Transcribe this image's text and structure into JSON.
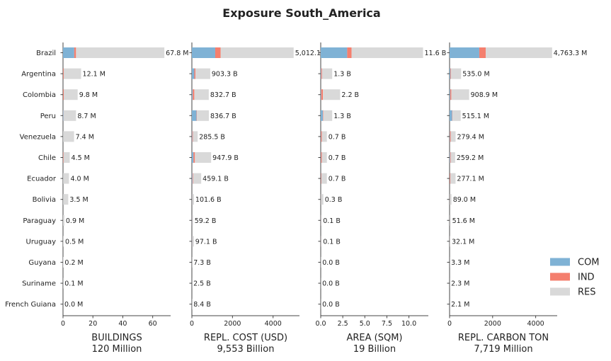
{
  "chart_data": {
    "type": "bar",
    "orientation": "horizontal",
    "stacked": true,
    "title": "Exposure South_America",
    "countries": [
      "Brazil",
      "Argentina",
      "Colombia",
      "Peru",
      "Venezuela",
      "Chile",
      "Ecuador",
      "Bolivia",
      "Paraguay",
      "Uruguay",
      "Guyana",
      "Suriname",
      "French Guiana"
    ],
    "legend": {
      "position": "right",
      "items": [
        {
          "name": "COM",
          "color": "#7fb2d5"
        },
        {
          "name": "IND",
          "color": "#f47f6e"
        },
        {
          "name": "RES",
          "color": "#d9d9d9"
        }
      ]
    },
    "panels": [
      {
        "xlabel": "BUILDINGS",
        "total_label": "120 Million",
        "xlim": [
          0,
          72
        ],
        "ticks": [
          0,
          20,
          40,
          60
        ],
        "com": [
          7.5,
          0.05,
          0.05,
          0.3,
          0.05,
          0.05,
          0.05,
          0.05,
          0.02,
          0.02,
          0.01,
          0.01,
          0.0
        ],
        "ind": [
          1.2,
          0.4,
          0.5,
          0.1,
          0.0,
          0.3,
          0.0,
          0.0,
          0.0,
          0.0,
          0.0,
          0.0,
          0.0
        ],
        "res": [
          59.1,
          11.65,
          9.25,
          8.3,
          7.35,
          4.15,
          3.95,
          3.45,
          0.88,
          0.48,
          0.19,
          0.09,
          0.0
        ],
        "labels": [
          "67.8 M",
          "12.1 M",
          "9.8 M",
          "8.7 M",
          "7.4 M",
          "4.5 M",
          "4.0 M",
          "3.5 M",
          "0.9 M",
          "0.5 M",
          "0.2 M",
          "0.1 M",
          "0.0 M"
        ]
      },
      {
        "xlabel": "REPL. COST (USD)",
        "total_label": "9,553 Billion",
        "xlim": [
          0,
          5300
        ],
        "ticks": [
          0,
          2000,
          4000
        ],
        "com": [
          1150,
          120,
          40,
          230,
          20,
          80,
          30,
          10,
          10,
          10,
          1,
          1,
          1
        ],
        "ind": [
          270,
          60,
          80,
          20,
          30,
          70,
          30,
          5,
          5,
          5,
          1,
          0.5,
          0.5
        ],
        "res": [
          3592.1,
          723.3,
          712.7,
          586.7,
          235.5,
          797.9,
          399.1,
          86.6,
          44.2,
          82.1,
          5.3,
          1,
          6.9
        ],
        "labels": [
          "5,012.1 B",
          "903.3 B",
          "832.7 B",
          "836.7 B",
          "285.5 B",
          "947.9 B",
          "459.1 B",
          "101.6 B",
          "59.2 B",
          "97.1 B",
          "7.3 B",
          "2.5 B",
          "8.4 B"
        ]
      },
      {
        "xlabel": "AREA (SQM)",
        "total_label": "19 Billion",
        "xlim": [
          0,
          12.2
        ],
        "ticks": [
          0,
          2.5,
          5.0,
          7.5,
          10.0
        ],
        "tick_labels": [
          "0.0",
          "2.5",
          "5.0",
          "7.5",
          "10.0"
        ],
        "com": [
          3.0,
          0.05,
          0.05,
          0.25,
          0.03,
          0.03,
          0.03,
          0.01,
          0.01,
          0.01,
          0,
          0,
          0
        ],
        "ind": [
          0.5,
          0.1,
          0.2,
          0.05,
          0.1,
          0.1,
          0.05,
          0.01,
          0.01,
          0.01,
          0,
          0,
          0
        ],
        "res": [
          8.1,
          1.15,
          1.95,
          1.0,
          0.57,
          0.57,
          0.62,
          0.28,
          0.08,
          0.08,
          0.02,
          0.01,
          0.01
        ],
        "labels": [
          "11.6 B",
          "1.3 B",
          "2.2 B",
          "1.3 B",
          "0.7 B",
          "0.7 B",
          "0.7 B",
          "0.3 B",
          "0.1 B",
          "0.1 B",
          "0.0 B",
          "0.0 B",
          "0.0 B"
        ]
      },
      {
        "xlabel": "REPL. CARBON TON",
        "total_label": "7,719 Million",
        "xlim": [
          0,
          5000
        ],
        "ticks": [
          0,
          2000,
          4000
        ],
        "com": [
          1380,
          40,
          30,
          120,
          15,
          25,
          10,
          5,
          3,
          3,
          0.5,
          0.5,
          0.5
        ],
        "ind": [
          300,
          30,
          50,
          15,
          40,
          30,
          30,
          5,
          3,
          3,
          0.5,
          0.3,
          0.3
        ],
        "res": [
          3083.3,
          465,
          828.9,
          380.1,
          224.4,
          204.2,
          237.1,
          79,
          45.6,
          26.1,
          2.3,
          1.5,
          1.3
        ],
        "labels": [
          "4,763.3 M",
          "535.0 M",
          "908.9 M",
          "515.1 M",
          "279.4 M",
          "259.2 M",
          "277.1 M",
          "89.0 M",
          "51.6 M",
          "32.1 M",
          "3.3 M",
          "2.3 M",
          "2.1 M"
        ]
      }
    ]
  }
}
